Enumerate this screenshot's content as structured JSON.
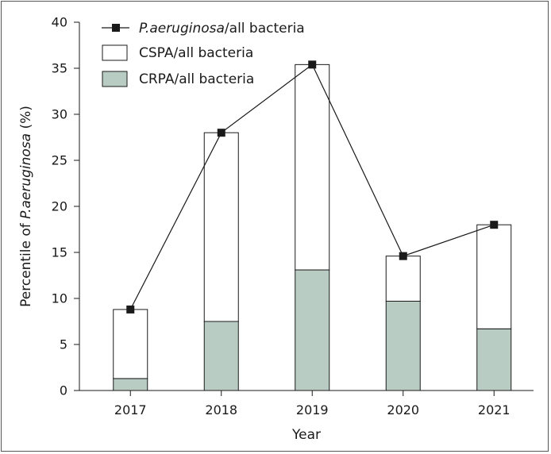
{
  "chart_data": {
    "type": "bar",
    "stacked": true,
    "categories": [
      "2017",
      "2018",
      "2019",
      "2020",
      "2021"
    ],
    "series": [
      {
        "name": "CRPA/all bacteria",
        "kind": "bar",
        "values": [
          1.3,
          7.5,
          13.1,
          9.7,
          6.7
        ],
        "color": "#b9ccc4"
      },
      {
        "name": "CSPA/all bacteria",
        "kind": "bar",
        "values": [
          7.5,
          20.5,
          22.3,
          4.9,
          11.3
        ],
        "color": "#ffffff"
      },
      {
        "name_italic": "P.aeruginosa",
        "name_rest": "/all bacteria",
        "kind": "line-marker",
        "values": [
          8.8,
          28.0,
          35.4,
          14.6,
          18.0
        ],
        "color": "#1a1a1a"
      }
    ],
    "xlabel": "Year",
    "ylabel_prefix": "Percentile of ",
    "ylabel_italic": "P.aeruginosa",
    "ylabel_suffix": " (%)",
    "ylim": [
      0,
      40
    ],
    "yticks": [
      0,
      5,
      10,
      15,
      20,
      25,
      30,
      35,
      40
    ],
    "grid": false,
    "legend_position": "top-left"
  }
}
